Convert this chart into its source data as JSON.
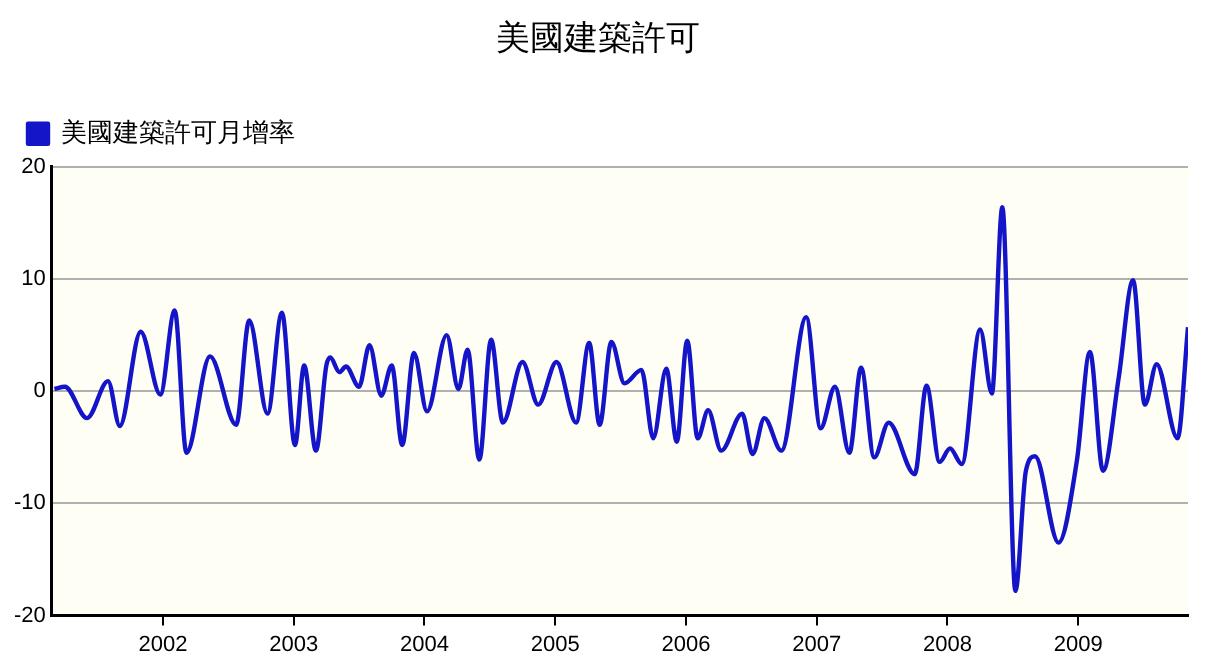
{
  "chart_data": {
    "type": "line",
    "title": "美國建築許可",
    "legend": "top left",
    "grid": "y",
    "marker": "none",
    "line_style": "solid",
    "xlim": [
      2001.15,
      2009.84
    ],
    "xticks": [
      2002,
      2003,
      2004,
      2005,
      2006,
      2007,
      2008,
      2009
    ],
    "ylim": [
      -20,
      20
    ],
    "yticks": [
      -20,
      -10,
      0,
      10,
      20
    ],
    "series": [
      {
        "name": "美國建築許可月增率",
        "color": "#1414c8",
        "x": [
          2001.17,
          2001.25,
          2001.42,
          2001.58,
          2001.67,
          2001.83,
          2001.98,
          2002.09,
          2002.18,
          2002.36,
          2002.56,
          2002.66,
          2002.8,
          2002.91,
          2003.01,
          2003.08,
          2003.17,
          2003.25,
          2003.28,
          2003.35,
          2003.4,
          2003.5,
          2003.58,
          2003.67,
          2003.75,
          2003.83,
          2003.92,
          2004.02,
          2004.17,
          2004.26,
          2004.33,
          2004.42,
          2004.51,
          2004.6,
          2004.75,
          2004.87,
          2005.01,
          2005.16,
          2005.26,
          2005.34,
          2005.43,
          2005.53,
          2005.66,
          2005.75,
          2005.85,
          2005.93,
          2006.01,
          2006.09,
          2006.17,
          2006.27,
          2006.43,
          2006.51,
          2006.6,
          2006.73,
          2006.92,
          2007.03,
          2007.14,
          2007.25,
          2007.34,
          2007.44,
          2007.55,
          2007.75,
          2007.84,
          2007.94,
          2008.02,
          2008.11,
          2008.25,
          2008.34,
          2008.42,
          2008.52,
          2008.6,
          2008.67,
          2008.85,
          2008.99,
          2009.09,
          2009.19,
          2009.31,
          2009.42,
          2009.51,
          2009.6,
          2009.76,
          2009.84
        ],
        "values": [
          0.2,
          0.4,
          -2.4,
          0.9,
          -3.1,
          5.3,
          -0.3,
          7.2,
          -5.5,
          3.1,
          -3.0,
          6.3,
          -2.0,
          7.0,
          -4.8,
          2.3,
          -5.3,
          2.3,
          3.0,
          1.7,
          2.2,
          0.4,
          4.1,
          -0.4,
          2.3,
          -4.8,
          3.4,
          -1.8,
          5.0,
          0.2,
          3.7,
          -6.1,
          4.6,
          -2.8,
          2.6,
          -1.2,
          2.6,
          -2.8,
          4.3,
          -3.0,
          4.4,
          0.7,
          1.9,
          -4.2,
          2.0,
          -4.5,
          4.5,
          -4.2,
          -1.7,
          -5.3,
          -2.0,
          -5.6,
          -2.4,
          -5.3,
          6.6,
          -3.3,
          0.4,
          -5.5,
          2.1,
          -5.9,
          -2.8,
          -7.4,
          0.5,
          -6.3,
          -5.1,
          -6.5,
          5.5,
          -0.2,
          16.4,
          -17.8,
          -7.1,
          -5.8,
          -13.5,
          -6.2,
          3.5,
          -7.1,
          1.2,
          9.9,
          -1.2,
          2.4,
          -4.2,
          5.7
        ]
      }
    ]
  }
}
